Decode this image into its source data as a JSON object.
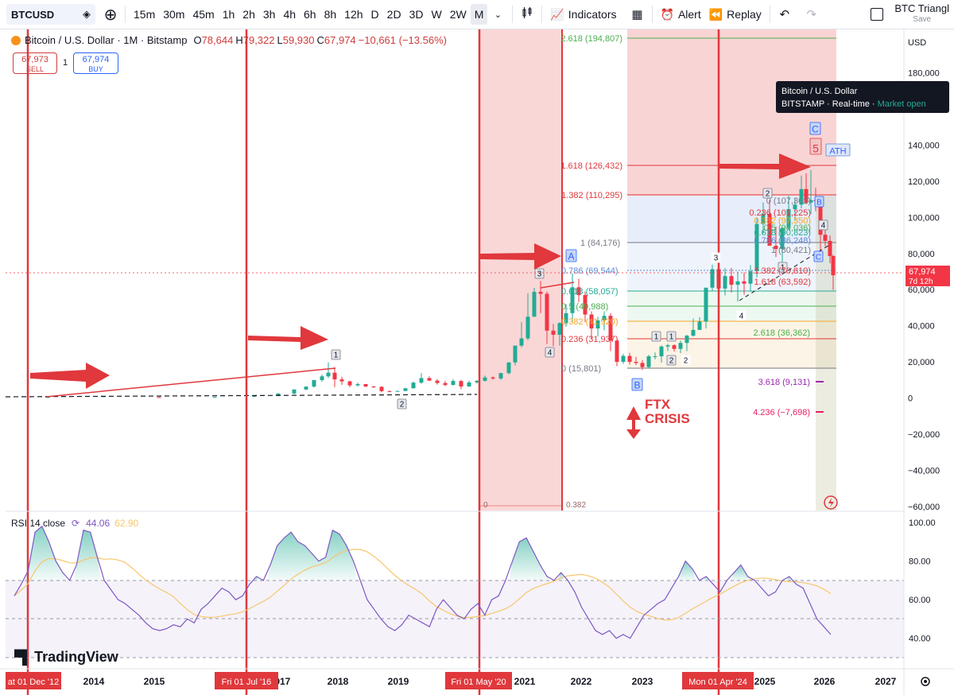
{
  "toolbar": {
    "symbol": "BTCUSD",
    "intervals": [
      "15m",
      "30m",
      "45m",
      "1h",
      "2h",
      "3h",
      "4h",
      "6h",
      "8h",
      "12h",
      "D",
      "2D",
      "3D",
      "W",
      "2W",
      "M"
    ],
    "active_interval": "M",
    "indicators_label": "Indicators",
    "alert_label": "Alert",
    "replay_label": "Replay",
    "layout_name": "BTC Triangl",
    "layout_save": "Save"
  },
  "legend": {
    "title": "Bitcoin / U.S. Dollar · 1M · Bitstamp",
    "o_key": "O",
    "o": "78,644",
    "h_key": "H",
    "h": "79,322",
    "l_key": "L",
    "l": "59,930",
    "c_key": "C",
    "c": "67,974",
    "change": "−10,661 (−13.56%)"
  },
  "trade": {
    "sell_price": "67,973",
    "sell_label": "SELL",
    "qty": "1",
    "buy_price": "67,974",
    "buy_label": "BUY"
  },
  "tooltip": {
    "line1": "Bitcoin / U.S. Dollar",
    "exchange": "BITSTAMP",
    "mode": "Real-time",
    "status": "Market open"
  },
  "price_axis": {
    "currency": "USD",
    "ticks": [
      "180,000",
      "160,000",
      "140,000",
      "120,000",
      "100,000",
      "80,000",
      "60,000",
      "40,000",
      "20,000",
      "0",
      "−20,000",
      "−40,000",
      "−60,000"
    ],
    "last_price": "67,974",
    "countdown": "7d 12h"
  },
  "time_axis": {
    "ticks": [
      "2014",
      "2015",
      "2017",
      "2018",
      "2019",
      "2021",
      "2022",
      "2023",
      "2025",
      "2026",
      "2027"
    ],
    "markers": [
      "at 01 Dec '12",
      "Fri 01 Jul '16",
      "Fri 01 May '20",
      "Mon 01 Apr '24"
    ]
  },
  "fib_left": {
    "zero": "0",
    "level": "0.382"
  },
  "fib": [
    {
      "label": "2.618 (194,807)",
      "color": "#4caf50"
    },
    {
      "label": "1.618 (126,432)",
      "color": "#e0383c"
    },
    {
      "label": "1.382 (110,295)",
      "color": "#e0383c"
    },
    {
      "label": "1 (84,176)",
      "color": "#787b86"
    },
    {
      "label": "0.786 (69,544)",
      "color": "#5b8ad6"
    },
    {
      "label": "0.618 (58,057)",
      "color": "#22ab94"
    },
    {
      "label": "0.5 (49,988)",
      "color": "#4caf50"
    },
    {
      "label": "0.382 (41,920)",
      "color": "#f5a623"
    },
    {
      "label": "0.236 (31,937)",
      "color": "#e0383c"
    },
    {
      "label": "0 (15,801)",
      "color": "#787b86"
    },
    {
      "label": "3.618 (9,131)",
      "color": "#9c27b0"
    },
    {
      "label": "4.236 (−7,698)",
      "color": "#e91e63"
    }
  ],
  "fib_inner": [
    {
      "label": "0 (107,362)",
      "color": "#787b86"
    },
    {
      "label": "0.236 (101,225)",
      "color": "#e0383c"
    },
    {
      "label": "0.382 (97,350)",
      "color": "#f5a623"
    },
    {
      "label": "0.5 (94,036)",
      "color": "#4caf50"
    },
    {
      "label": "0.618 (90,823)",
      "color": "#22ab94"
    },
    {
      "label": "0.786 (86,248)",
      "color": "#5b8ad6"
    },
    {
      "label": "1 (80,421)",
      "color": "#787b86"
    },
    {
      "label": "1.382 (70,810)",
      "color": "#e0383c"
    },
    {
      "label": "1.618 (63,592)",
      "color": "#e0383c"
    },
    {
      "label": "2.618 (36,362)",
      "color": "#4caf50"
    }
  ],
  "annotations": {
    "wave_A": "A",
    "wave_B": "B",
    "wave_C": "C",
    "wave_C2": "C",
    "wave_B2": "B",
    "wave_5": "5",
    "ath": "ATH",
    "w1a": "1",
    "w2a": "2",
    "w3a": "3",
    "w4a": "4",
    "w1b": "1",
    "w1c": "1",
    "w2b": "2",
    "w2c": "2",
    "w3b": "3",
    "w4b": "4",
    "w2d": "2",
    "w1d": "1",
    "w4d": "4",
    "ftx_line1": "FTX",
    "ftx_line2": "CRISIS"
  },
  "rsi": {
    "title": "RSI 14 close",
    "value": "44.06",
    "ma_value": "62.90",
    "ticks": [
      "100.00",
      "80.00",
      "60.00",
      "40.00"
    ]
  },
  "watermark": "TradingView",
  "colors": {
    "up": "#22ab94",
    "down": "#f23645",
    "arrow": "#e0383c",
    "rsi": "#7e57c2",
    "rsi_ma": "#f7c66c"
  }
}
